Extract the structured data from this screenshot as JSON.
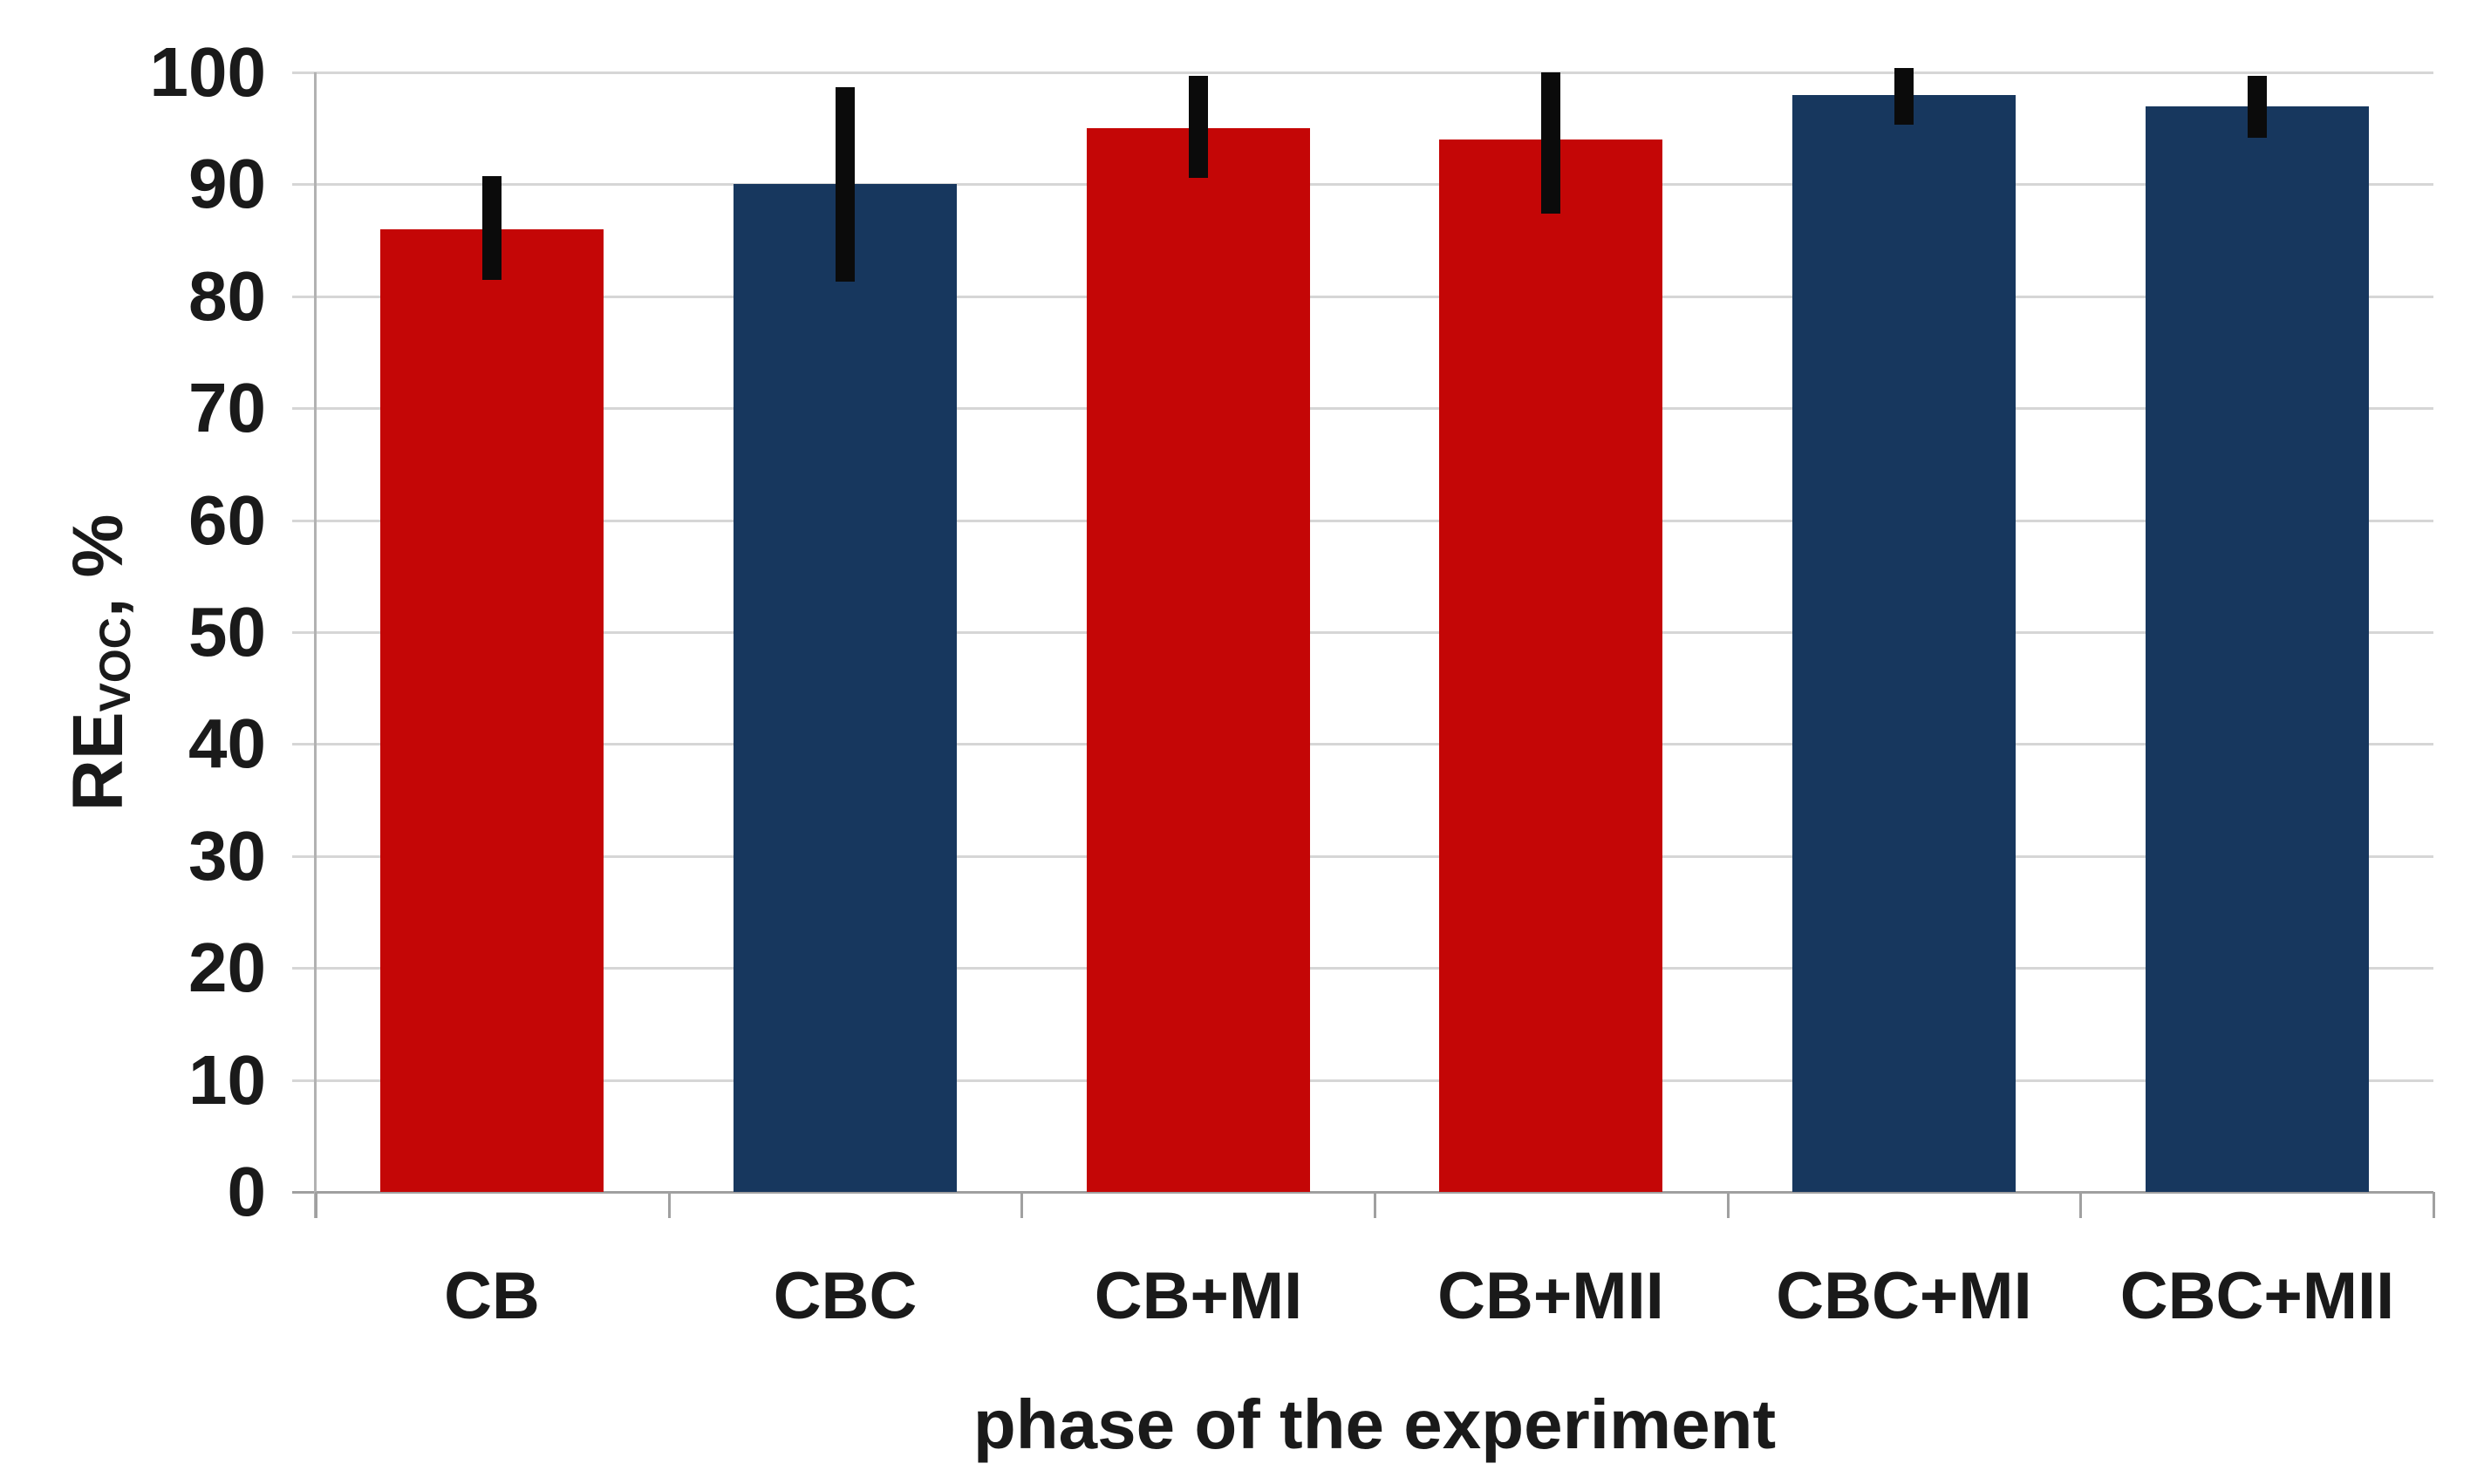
{
  "chart_data": {
    "type": "bar",
    "title": "",
    "xlabel": "phase of the experiment",
    "ylabel": {
      "main": "RE",
      "sub": "VOC",
      "suffix": ", %"
    },
    "ylim": [
      0,
      100
    ],
    "ytick_step": 10,
    "yticks": [
      0,
      10,
      20,
      30,
      40,
      50,
      60,
      70,
      80,
      90,
      100
    ],
    "grid": "horizontal-only",
    "legend": "none",
    "categories": [
      "CB",
      "CBC",
      "CB+MI",
      "CB+MII",
      "CBC+MI",
      "CBC+MII"
    ],
    "series": [
      {
        "name": "RE_VOC",
        "values": [
          86,
          90,
          95,
          94,
          98,
          97
        ],
        "error_low": [
          81.4,
          81.3,
          90.6,
          87.4,
          95.3,
          94.2
        ],
        "error_high": [
          90.7,
          98.7,
          99.7,
          100.0,
          100.4,
          99.7
        ],
        "bar_colors": [
          "#c40606",
          "#17375e",
          "#c40606",
          "#c40606",
          "#17375e",
          "#17375e"
        ]
      }
    ],
    "colors": {
      "red_bar": "#c40606",
      "blue_bar": "#17375e",
      "error_bar": "#0b0b0b",
      "gridline": "#d6d6d6",
      "axis": "#a0a0a0",
      "text": "#1a1a1a",
      "background": "#ffffff"
    }
  }
}
